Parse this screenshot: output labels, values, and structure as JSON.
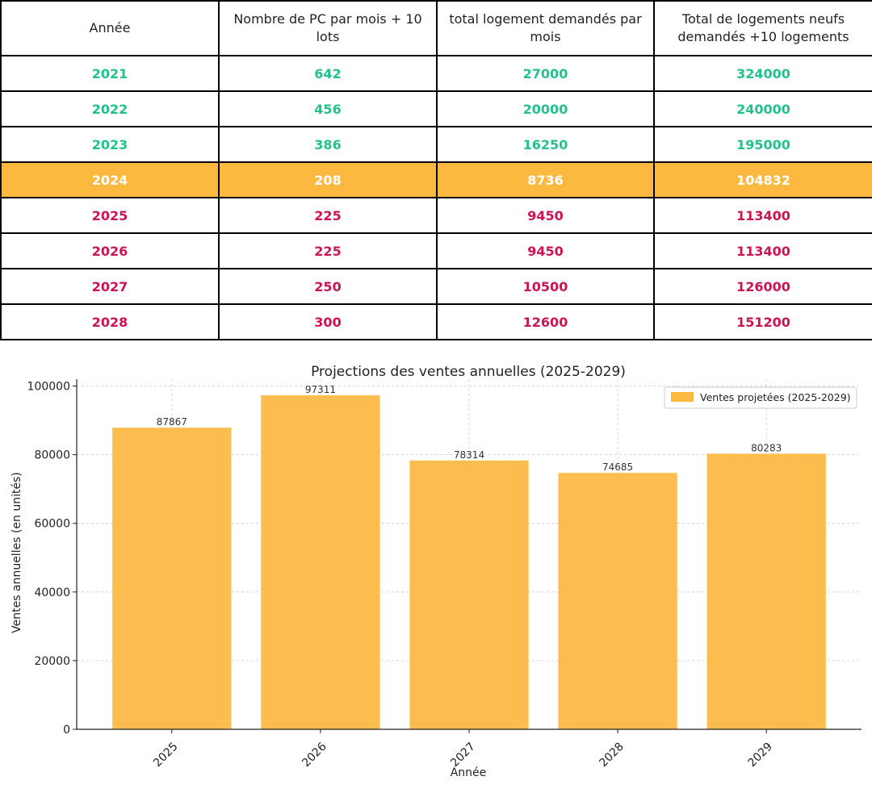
{
  "table": {
    "headers": [
      "Année",
      "Nombre de PC par mois + 10 lots",
      "total logement demandés par mois",
      "Total de logements neufs demandés +10 logements"
    ],
    "rows": [
      {
        "status": "past",
        "cells": [
          "2021",
          "642",
          "27000",
          "324000"
        ]
      },
      {
        "status": "past",
        "cells": [
          "2022",
          "456",
          "20000",
          "240000"
        ]
      },
      {
        "status": "past",
        "cells": [
          "2023",
          "386",
          "16250",
          "195000"
        ]
      },
      {
        "status": "current",
        "cells": [
          "2024",
          "208",
          "8736",
          "104832"
        ]
      },
      {
        "status": "future",
        "cells": [
          "2025",
          "225",
          "9450",
          "113400"
        ]
      },
      {
        "status": "future",
        "cells": [
          "2026",
          "225",
          "9450",
          "113400"
        ]
      },
      {
        "status": "future",
        "cells": [
          "2027",
          "250",
          "10500",
          "126000"
        ]
      },
      {
        "status": "future",
        "cells": [
          "2028",
          "300",
          "12600",
          "151200"
        ]
      }
    ],
    "colors": {
      "past": "#23c28d",
      "current_bg": "#fbb93f",
      "future": "#cc1453"
    }
  },
  "chart_data": {
    "type": "bar",
    "title": "Projections des ventes annuelles (2025-2029)",
    "xlabel": "Année",
    "ylabel": "Ventes annuelles (en unités)",
    "categories": [
      "2025",
      "2026",
      "2027",
      "2028",
      "2029"
    ],
    "values": [
      87867,
      97311,
      78314,
      74685,
      80283
    ],
    "data_labels": [
      "87867",
      "97311",
      "78314",
      "74685",
      "80283"
    ],
    "ylim": [
      0,
      102000
    ],
    "yticks": [
      0,
      20000,
      40000,
      60000,
      80000,
      100000
    ],
    "ytick_labels": [
      "0",
      "20000",
      "40000",
      "60000",
      "80000",
      "100000"
    ],
    "legend": {
      "label": "Ventes projetées (2025-2029)",
      "position": "top-right"
    },
    "grid": true,
    "bar_color": "#fbb93f"
  }
}
